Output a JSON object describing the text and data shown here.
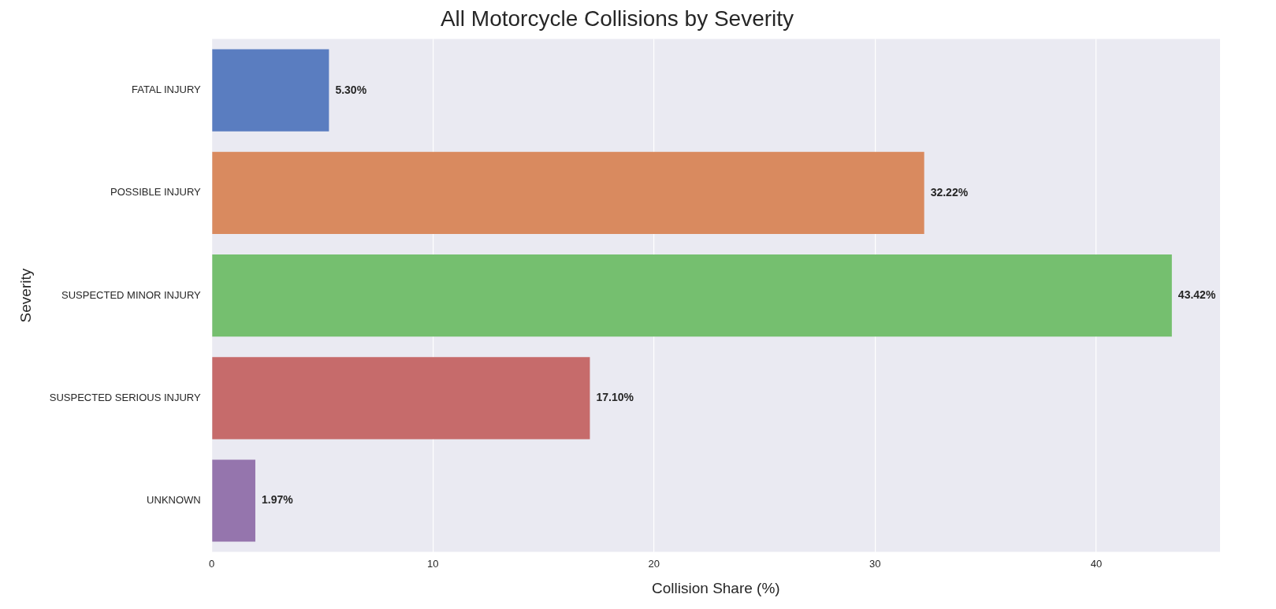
{
  "chart_data": {
    "type": "bar",
    "orientation": "horizontal",
    "title": "All Motorcycle Collisions by Severity",
    "xlabel": "Collision Share (%)",
    "ylabel": "Severity",
    "categories": [
      "FATAL INJURY",
      "POSSIBLE INJURY",
      "SUSPECTED MINOR INJURY",
      "SUSPECTED SERIOUS INJURY",
      "UNKNOWN"
    ],
    "values": [
      5.3,
      32.22,
      43.42,
      17.1,
      1.97
    ],
    "value_labels": [
      "5.30%",
      "32.22%",
      "43.42%",
      "17.10%",
      "1.97%"
    ],
    "colors": [
      "#5a7dc0",
      "#d98a5f",
      "#75bf6f",
      "#c66b6b",
      "#9575ad"
    ],
    "xlim": [
      0,
      45.6
    ],
    "xticks": [
      0,
      10,
      20,
      30,
      40
    ],
    "grid": "x",
    "legend": false
  }
}
